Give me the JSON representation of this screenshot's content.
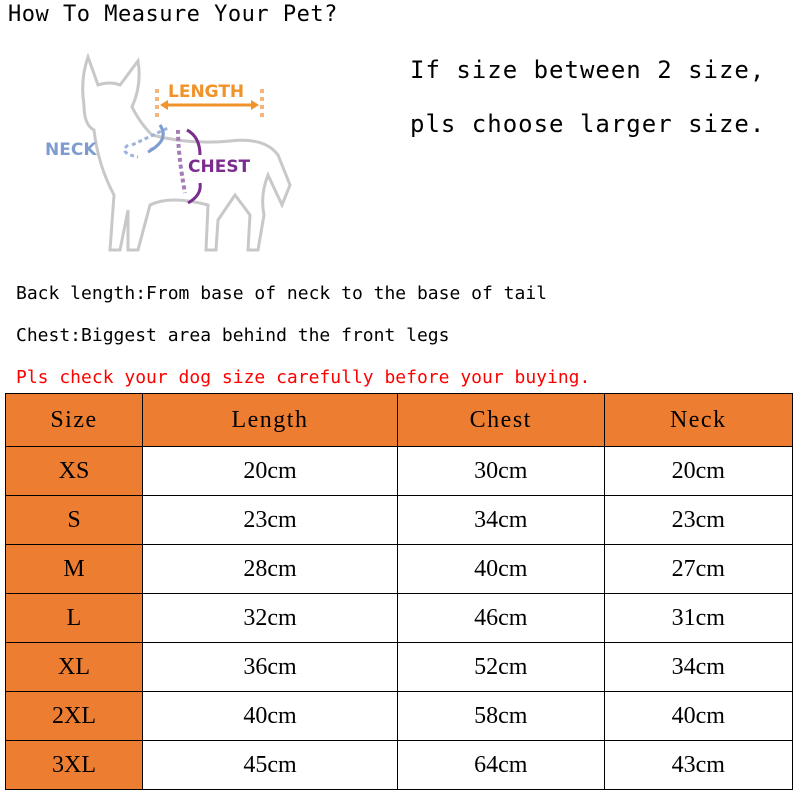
{
  "title": "How To Measure Your Pet?",
  "note": [
    "If size between 2 size,",
    "pls choose larger size."
  ],
  "diagram": {
    "labels": {
      "length": "LENGTH",
      "neck": "NECK",
      "chest": "CHEST"
    },
    "colors": {
      "length": "#F0932B",
      "neck": "#7F9CD0",
      "chest": "#7B2D8E",
      "outline": "#C8C8C8"
    }
  },
  "instructions": [
    "Back length:From base of neck to the base of tail",
    "Chest:Biggest area behind the front legs"
  ],
  "warning": "Pls check your dog size carefully before your buying.",
  "colors": {
    "header": "#ED7D31",
    "warning": "#FF0000"
  },
  "table": {
    "headers": [
      "Size",
      "Length",
      "Chest",
      "Neck"
    ],
    "rows": [
      [
        "XS",
        "20cm",
        "30cm",
        "20cm"
      ],
      [
        "S",
        "23cm",
        "34cm",
        "23cm"
      ],
      [
        "M",
        "28cm",
        "40cm",
        "27cm"
      ],
      [
        "L",
        "32cm",
        "46cm",
        "31cm"
      ],
      [
        "XL",
        "36cm",
        "52cm",
        "34cm"
      ],
      [
        "2XL",
        "40cm",
        "58cm",
        "40cm"
      ],
      [
        "3XL",
        "45cm",
        "64cm",
        "43cm"
      ]
    ]
  }
}
